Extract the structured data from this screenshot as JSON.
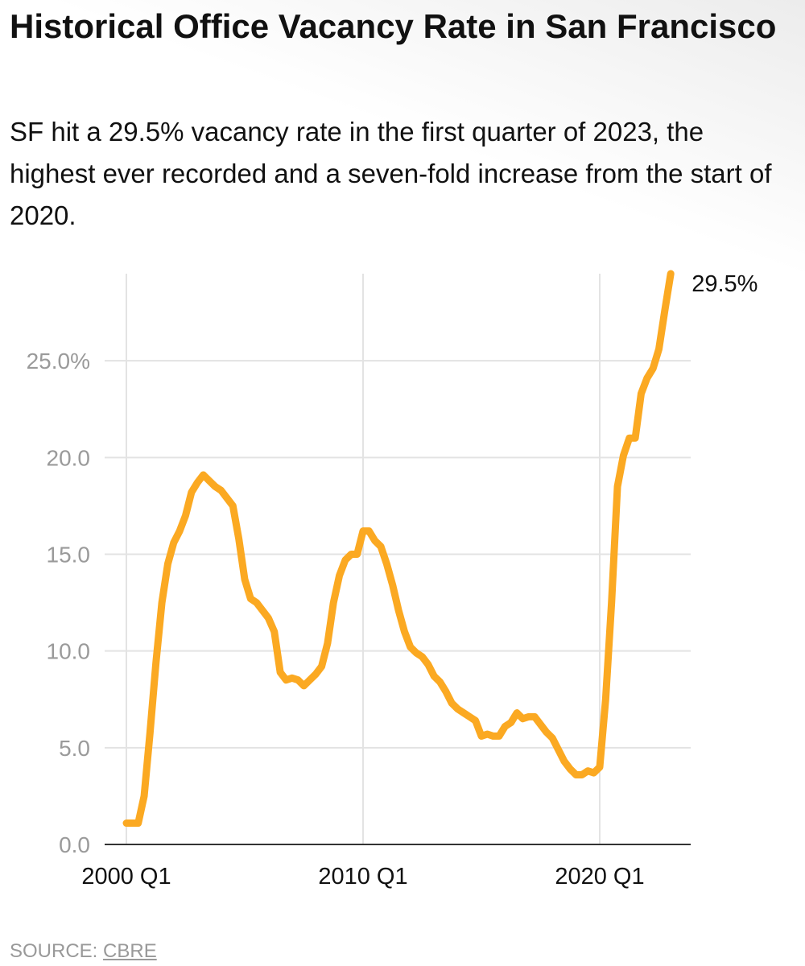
{
  "chart_data": {
    "type": "line",
    "title": "Historical Office Vacancy Rate in San Francisco",
    "subtitle": "SF hit a 29.5% vacancy rate in the first quarter of 2023, the highest ever recorded and a seven-fold increase from the start of 2020.",
    "categories": [
      "2000 Q1",
      null,
      null,
      null,
      null,
      null,
      null,
      null,
      null,
      null,
      null,
      null,
      null,
      null,
      null,
      null,
      null,
      null,
      null,
      null,
      null,
      null,
      null,
      null,
      null,
      null,
      null,
      null,
      null,
      null,
      null,
      null,
      null,
      null,
      null,
      null,
      null,
      null,
      null,
      null,
      "2010 Q1",
      null,
      null,
      null,
      null,
      null,
      null,
      null,
      null,
      null,
      null,
      null,
      null,
      null,
      null,
      null,
      null,
      null,
      null,
      null,
      null,
      null,
      null,
      null,
      null,
      null,
      null,
      null,
      null,
      null,
      null,
      null,
      null,
      null,
      null,
      null,
      null,
      null,
      null,
      null,
      "2020 Q1",
      null,
      null,
      null,
      null,
      null,
      null,
      null,
      null,
      null,
      null,
      null,
      null
    ],
    "values": [
      1.1,
      1.1,
      1.1,
      2.5,
      5.8,
      9.4,
      12.5,
      14.5,
      15.6,
      16.2,
      17.0,
      18.2,
      18.7,
      19.1,
      18.8,
      18.5,
      18.3,
      17.9,
      17.5,
      15.8,
      13.7,
      12.7,
      12.5,
      12.1,
      11.7,
      11.0,
      8.9,
      8.5,
      8.6,
      8.5,
      8.2,
      8.5,
      8.8,
      9.2,
      10.4,
      12.5,
      13.9,
      14.7,
      15.0,
      15.0,
      16.2,
      16.2,
      15.7,
      15.4,
      14.5,
      13.4,
      12.1,
      11.0,
      10.2,
      9.9,
      9.7,
      9.3,
      8.7,
      8.4,
      7.9,
      7.3,
      7.0,
      6.8,
      6.6,
      6.4,
      5.6,
      5.7,
      5.6,
      5.6,
      6.1,
      6.3,
      6.8,
      6.5,
      6.6,
      6.6,
      6.2,
      5.8,
      5.5,
      4.9,
      4.3,
      3.9,
      3.6,
      3.6,
      3.8,
      3.7,
      4.0,
      7.5,
      12.5,
      18.5,
      20.1,
      21.0,
      21.0,
      23.3,
      24.1,
      24.6,
      25.6,
      27.6,
      29.5
    ],
    "value_labels": [
      null,
      null,
      null,
      null,
      null,
      null,
      null,
      null,
      null,
      null,
      null,
      null,
      null,
      null,
      null,
      null,
      null,
      null,
      null,
      null,
      null,
      null,
      null,
      null,
      null,
      null,
      null,
      null,
      null,
      null,
      null,
      null,
      null,
      null,
      null,
      null,
      null,
      null,
      null,
      null,
      null,
      null,
      null,
      null,
      null,
      null,
      null,
      null,
      null,
      null,
      null,
      null,
      null,
      null,
      null,
      null,
      null,
      null,
      null,
      null,
      null,
      null,
      null,
      null,
      null,
      null,
      null,
      null,
      null,
      null,
      null,
      null,
      null,
      null,
      null,
      null,
      null,
      null,
      null,
      null,
      null,
      null,
      null,
      null,
      null,
      null,
      null,
      null,
      null,
      null,
      null,
      null,
      "29.5%"
    ],
    "color": "#fba922",
    "ylim": [
      0,
      29.5
    ],
    "yticks": [
      {
        "value": 0,
        "label": "0.0"
      },
      {
        "value": 5,
        "label": "5.0"
      },
      {
        "value": 10,
        "label": "10.0"
      },
      {
        "value": 15,
        "label": "15.0"
      },
      {
        "value": 20,
        "label": "20.0"
      },
      {
        "value": 25,
        "label": "25.0%"
      }
    ],
    "grid": true,
    "source": {
      "prefix": "SOURCE:",
      "link": "CBRE"
    }
  }
}
